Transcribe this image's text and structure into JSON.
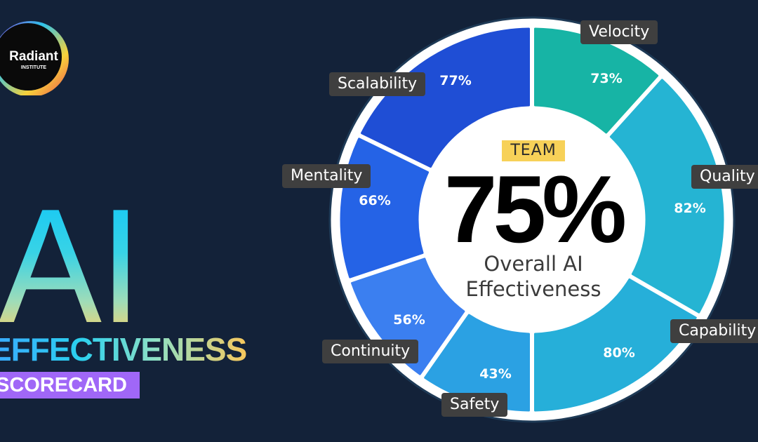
{
  "logo": {
    "name": "Radiant",
    "subtitle": "INSTITUTE"
  },
  "title": {
    "main": "AI",
    "line2": "EFFECTIVENESS",
    "badge": "SCORECARD"
  },
  "center": {
    "badge": "TEAM",
    "overall_value": "75%",
    "caption_line1": "Overall AI",
    "caption_line2": "Effectiveness"
  },
  "colors": {
    "background": "#132239",
    "badge_purple": "#a067f7",
    "team_yellow": "#f7d158",
    "label_bg": "#3f3f3f"
  },
  "segments": [
    {
      "name": "Velocity",
      "value": "73%",
      "color": "#17b4a5"
    },
    {
      "name": "Quality",
      "value": "82%",
      "color": "#25b4d3"
    },
    {
      "name": "Capability",
      "value": "80%",
      "color": "#26afd9"
    },
    {
      "name": "Safety",
      "value": "43%",
      "color": "#2ba1e3"
    },
    {
      "name": "Continuity",
      "value": "56%",
      "color": "#3b7ff0"
    },
    {
      "name": "Mentality",
      "value": "66%",
      "color": "#2563e6"
    },
    {
      "name": "Scalability",
      "value": "77%",
      "color": "#1f4ed5"
    }
  ],
  "chart_data": {
    "type": "pie",
    "title": "AI Effectiveness Scorecard",
    "center_label": "TEAM 75% Overall AI Effectiveness",
    "categories": [
      "Velocity",
      "Quality",
      "Capability",
      "Safety",
      "Continuity",
      "Mentality",
      "Scalability"
    ],
    "values": [
      73,
      82,
      80,
      43,
      56,
      66,
      77
    ],
    "overall": 75,
    "unit": "%"
  }
}
